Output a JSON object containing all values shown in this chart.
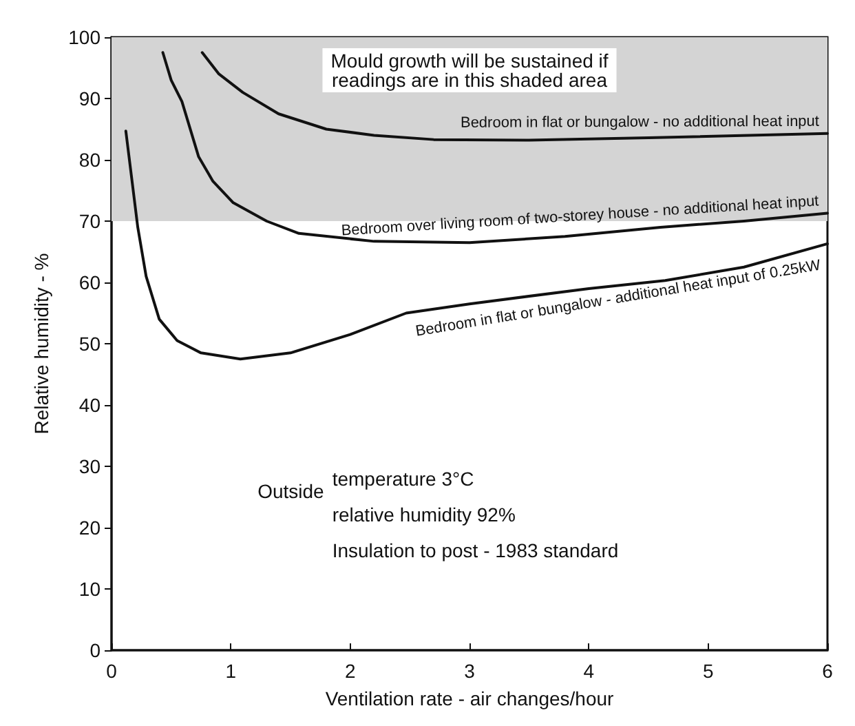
{
  "chart_data": {
    "type": "line",
    "xlabel": "Ventilation rate - air changes/hour",
    "ylabel": "Relative humidity - %",
    "xlim": [
      0,
      6
    ],
    "xticks": [
      0,
      1,
      2,
      3,
      4,
      5,
      6
    ],
    "ylim": [
      0,
      100
    ],
    "yticks": [
      0,
      10,
      20,
      30,
      40,
      50,
      60,
      70,
      80,
      90,
      100
    ],
    "grid": false,
    "legend": false,
    "marker": "none",
    "line_style": "solid",
    "bands": [
      {
        "axis": "y",
        "from": 70,
        "to": 100,
        "label": "Mould growth will be sustained if\nreadings are in this shaded area",
        "color": "#d4d4d4"
      }
    ],
    "series": [
      {
        "name": "Bedroom in flat or bungalow - no additional heat input",
        "color": "#111111",
        "x": [
          0.76,
          0.9,
          1.1,
          1.4,
          1.8,
          2.2,
          2.7,
          3.5,
          4.5,
          6
        ],
        "values": [
          97.5,
          94,
          91,
          87.5,
          85,
          84,
          83.3,
          83.2,
          83.6,
          84.3
        ]
      },
      {
        "name": "Bedroom over living room of two-storey house - no additional heat input",
        "color": "#111111",
        "x": [
          0.43,
          0.5,
          0.59,
          0.73,
          0.85,
          1.02,
          1.3,
          1.57,
          2.2,
          3,
          3.8,
          4.6,
          5.3,
          6
        ],
        "values": [
          97.5,
          93,
          89.5,
          80.5,
          76.5,
          73,
          70,
          68,
          66.7,
          66.5,
          67.5,
          69,
          70,
          71.3
        ]
      },
      {
        "name": "Bedroom in flat or bungalow - additional heat input of 0.25kW",
        "color": "#111111",
        "x": [
          0.12,
          0.22,
          0.29,
          0.4,
          0.55,
          0.75,
          1.08,
          1.5,
          2,
          2.47,
          3,
          4,
          4.64,
          5.3,
          6
        ],
        "values": [
          84.7,
          69,
          61,
          54,
          50.5,
          48.5,
          47.5,
          48.5,
          51.5,
          55,
          56.5,
          59,
          60.3,
          62.5,
          66.3
        ]
      }
    ],
    "annotations": [
      "Outside",
      "temperature 3°C",
      "relative humidity 92%",
      "Insulation to post - 1983 standard"
    ]
  }
}
